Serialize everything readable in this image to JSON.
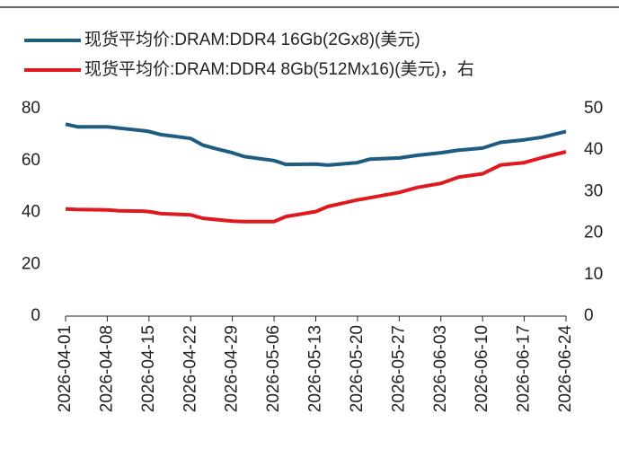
{
  "chart_data": {
    "type": "line",
    "x": [
      "2026-04-01",
      "2026-04-03",
      "2026-04-08",
      "2026-04-10",
      "2026-04-14",
      "2026-04-15",
      "2026-04-17",
      "2026-04-22",
      "2026-04-24",
      "2026-04-26",
      "2026-04-29",
      "2026-05-01",
      "2026-05-06",
      "2026-05-08",
      "2026-05-13",
      "2026-05-15",
      "2026-05-20",
      "2026-05-22",
      "2026-05-27",
      "2026-05-30",
      "2026-06-03",
      "2026-06-06",
      "2026-06-10",
      "2026-06-13",
      "2026-06-17",
      "2026-06-20",
      "2026-06-24"
    ],
    "series": [
      {
        "name": "现货平均价:DRAM:DDR4 16Gb(2Gx8)(美元)",
        "color": "#1f5c82",
        "values": [
          74,
          73,
          73,
          72.5,
          71.5,
          71.2,
          70,
          68.5,
          66,
          64.7,
          63,
          61.5,
          60,
          58.5,
          58.6,
          58.2,
          59.2,
          60.5,
          61,
          62,
          63,
          64,
          64.8,
          67,
          68,
          69,
          71.2
        ]
      },
      {
        "name": "现货平均价:DRAM:DDR4 8Gb(512Mx16)(美元)，右",
        "color": "#e0191f",
        "axis": "y2",
        "values": [
          25.8,
          25.7,
          25.6,
          25.4,
          25.3,
          25.2,
          24.7,
          24.4,
          23.6,
          23.3,
          22.9,
          22.8,
          22.8,
          24,
          25.2,
          26.4,
          28,
          28.5,
          29.8,
          31,
          32,
          33.5,
          34.3,
          36.4,
          37,
          38.2,
          39.6
        ]
      }
    ],
    "xticks": [
      "2026-04-01",
      "2026-04-08",
      "2026-04-15",
      "2026-04-22",
      "2026-04-29",
      "2026-05-06",
      "2026-05-13",
      "2026-05-20",
      "2026-05-27",
      "2026-06-03",
      "2026-06-10",
      "2026-06-17",
      "2026-06-24"
    ],
    "ylim": [
      0,
      80
    ],
    "yticks": [
      0,
      20,
      40,
      60,
      80
    ],
    "y2lim": [
      0,
      50
    ],
    "y2ticks": [
      0,
      10,
      20,
      30,
      40,
      50
    ]
  }
}
